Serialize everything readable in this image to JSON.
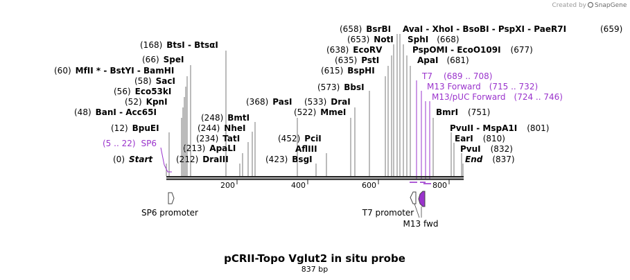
{
  "credit": {
    "created_by": "Created by",
    "brand": "SnapGene"
  },
  "map": {
    "title": "pCRII-Topo Vglut2 in situ probe",
    "size_label": "837 bp",
    "length": 837,
    "ticks": [
      200,
      400,
      600,
      800
    ]
  },
  "colors": {
    "primer": "#9a33cc",
    "feature_fill": "#9a33cc",
    "sequence": "#222222"
  },
  "sites": [
    {
      "pos": "(168)",
      "name": "BtsI",
      "tail": " - BtsαI"
    },
    {
      "pos": "(66)",
      "name": "SpeI",
      "tail": ""
    },
    {
      "pos": "(60)",
      "name": "MfII *",
      "tail": " - BstYI  - BamHI"
    },
    {
      "pos": "(58)",
      "name": "SacI",
      "tail": ""
    },
    {
      "pos": "(56)",
      "name": "Eco53kI",
      "tail": ""
    },
    {
      "pos": "(52)",
      "name": "KpnI",
      "tail": ""
    },
    {
      "pos": "(48)",
      "name": "BanI",
      "tail": "  - Acc65I"
    },
    {
      "pos": "(12)",
      "name": "BpuEI",
      "tail": ""
    },
    {
      "pos": "(0)",
      "name": "Start",
      "tail": ""
    },
    {
      "pos": "(212)",
      "name": "DraIII",
      "tail": ""
    },
    {
      "pos": "(213)",
      "name": "ApaLI",
      "tail": ""
    },
    {
      "pos": "(234)",
      "name": "TatI",
      "tail": ""
    },
    {
      "pos": "(244)",
      "name": "NheI",
      "tail": ""
    },
    {
      "pos": "(248)",
      "name": "BmtI",
      "tail": ""
    },
    {
      "pos": "(368)",
      "name": "PasI",
      "tail": ""
    },
    {
      "pos": "(423)",
      "name": "BsgI",
      "tail": ""
    },
    {
      "pos": "(452)",
      "name": "PciI",
      "tail": ""
    },
    {
      "pos": "",
      "name": "AflIII",
      "tail": ""
    },
    {
      "pos": "(533)",
      "name": "DraI",
      "tail": ""
    },
    {
      "pos": "(522)",
      "name": "MmeI",
      "tail": ""
    },
    {
      "pos": "(573)",
      "name": "BbsI",
      "tail": ""
    },
    {
      "pos": "(658)",
      "name": "BsrBI",
      "tail": ""
    },
    {
      "pos": "(653)",
      "name": "NotI",
      "tail": ""
    },
    {
      "pos": "(638)",
      "name": "EcoRV",
      "tail": ""
    },
    {
      "pos": "(635)",
      "name": "PstI",
      "tail": ""
    },
    {
      "pos": "(615)",
      "name": "BspHI",
      "tail": ""
    },
    {
      "pos": "",
      "name": "AvaI",
      "tail": "  - XhoI  - BsoBI  - PspXI  - PaeR7I"
    },
    {
      "pos": "(659)",
      "name": "",
      "tail": ""
    },
    {
      "pos": "(668)",
      "name": "SphI",
      "tail": ""
    },
    {
      "pos": "(677)",
      "name": "PspOMI",
      "tail": " - EcoO109I"
    },
    {
      "pos": "(681)",
      "name": "ApaI",
      "tail": ""
    },
    {
      "pos": "(751)",
      "name": "BmrI",
      "tail": ""
    },
    {
      "pos": "(801)",
      "name": "PvuII",
      "tail": "  - MspA1I"
    },
    {
      "pos": "(810)",
      "name": "EarI",
      "tail": ""
    },
    {
      "pos": "(832)",
      "name": "PvuI",
      "tail": ""
    },
    {
      "pos": "(837)",
      "name": "End",
      "tail": ""
    }
  ],
  "primers": [
    {
      "range": "(5 .. 22)",
      "name": "SP6"
    },
    {
      "range": "(689 .. 708)",
      "name": "T7"
    },
    {
      "range": "(715 .. 732)",
      "name": "M13 Forward"
    },
    {
      "range": "(724 .. 746)",
      "name": "M13/pUC Forward"
    }
  ],
  "features": [
    {
      "name": "SP6 promoter"
    },
    {
      "name": "T7 promoter"
    },
    {
      "name": "M13 fwd"
    }
  ]
}
